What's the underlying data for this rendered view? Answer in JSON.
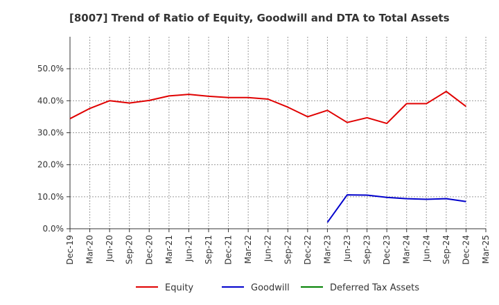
{
  "chart_data": {
    "type": "line",
    "title": "[8007]  Trend of Ratio of Equity, Goodwill and DTA to Total Assets",
    "xlabel": "",
    "ylabel": "",
    "ylim": [
      0,
      60
    ],
    "y_ticks": [
      0,
      10,
      20,
      30,
      40,
      50
    ],
    "y_tick_labels": [
      "0.0%",
      "10.0%",
      "20.0%",
      "30.0%",
      "40.0%",
      "50.0%"
    ],
    "categories": [
      "Dec-19",
      "Mar-20",
      "Jun-20",
      "Sep-20",
      "Dec-20",
      "Mar-21",
      "Jun-21",
      "Sep-21",
      "Dec-21",
      "Mar-22",
      "Jun-22",
      "Sep-22",
      "Dec-22",
      "Mar-23",
      "Jun-23",
      "Sep-23",
      "Dec-23",
      "Mar-24",
      "Jun-24",
      "Sep-24",
      "Dec-24",
      "Mar-25"
    ],
    "grid": true,
    "legend_position": "bottom",
    "series": [
      {
        "name": "Equity",
        "color": "#e00000",
        "values": [
          34.4,
          37.6,
          40.0,
          39.3,
          40.1,
          41.5,
          42.0,
          41.4,
          41.0,
          41.0,
          40.5,
          38.0,
          35.0,
          37.0,
          33.2,
          34.7,
          32.9,
          39.1,
          39.1,
          42.9,
          38.2,
          null
        ]
      },
      {
        "name": "Goodwill",
        "color": "#0000cc",
        "values": [
          null,
          null,
          null,
          null,
          null,
          null,
          null,
          null,
          null,
          null,
          null,
          null,
          null,
          2.0,
          10.6,
          10.5,
          9.8,
          9.4,
          9.2,
          9.4,
          8.5,
          null
        ]
      },
      {
        "name": "Deferred Tax Assets",
        "color": "#008000",
        "values": [
          null,
          null,
          null,
          null,
          null,
          null,
          null,
          null,
          null,
          null,
          null,
          null,
          null,
          null,
          null,
          null,
          null,
          null,
          null,
          null,
          null,
          null
        ]
      }
    ]
  }
}
